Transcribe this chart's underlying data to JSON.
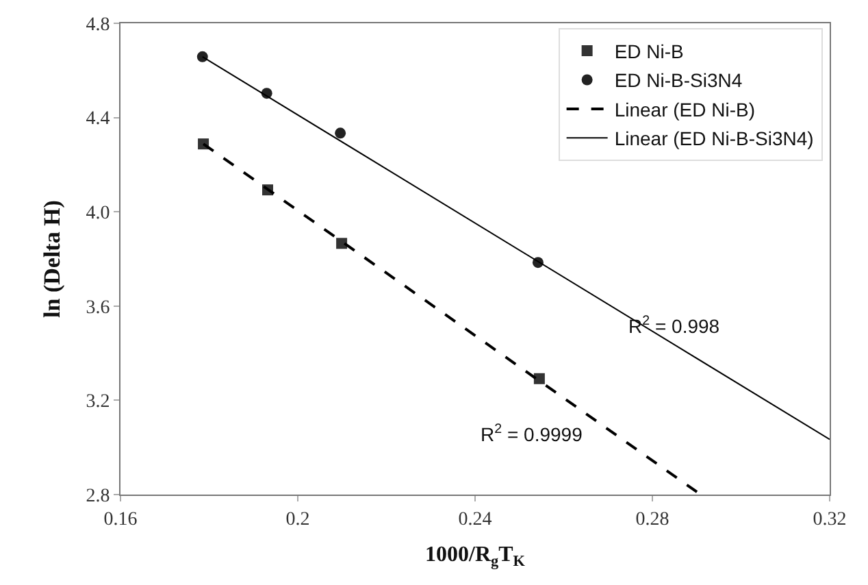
{
  "chart_data": {
    "type": "scatter",
    "xlabel": "1000/R$_{g}$T$_{K}$",
    "ylabel": "ln (Delta H)",
    "xlim": [
      0.16,
      0.32
    ],
    "xticks": [
      0.16,
      0.2,
      0.24,
      0.28,
      0.32
    ],
    "ylim": [
      2.8,
      4.8
    ],
    "yticks": [
      {
        "value": 2.8,
        "label": "2.8"
      },
      3.2,
      3.6,
      {
        "value": 4.0,
        "label": "4.0"
      },
      4.4,
      4.8
    ],
    "grid": false,
    "legend": "top right",
    "series": [
      {
        "name": "ED Ni-B",
        "marker": "square",
        "color": "#333333",
        "x": [
          0.1787,
          0.1932,
          0.2099,
          0.2545
        ],
        "values": [
          4.288,
          4.093,
          3.866,
          3.292
        ]
      },
      {
        "name": "ED Ni-B-Si3N4",
        "marker": "circle",
        "color": "#222222",
        "x": [
          0.1785,
          0.193,
          0.2096,
          0.2542
        ],
        "values": [
          4.658,
          4.503,
          4.334,
          3.785
        ]
      },
      {
        "name": "Linear (ED Ni-B)",
        "type": "line",
        "marker": "none",
        "line_style": "dashed",
        "color": "#000000",
        "x": [
          0.1787,
          0.2909
        ],
        "values": [
          4.288,
          2.8
        ]
      },
      {
        "name": "Linear (ED Ni-B-Si3N4)",
        "type": "line",
        "marker": "none",
        "line_style": "solid",
        "color": "#000000",
        "x": [
          0.1785,
          0.32
        ],
        "values": [
          4.658,
          3.034
        ]
      }
    ],
    "annotations": [
      "R$^{2}$ = 0.998",
      "R$^{2}$ = 0.9999"
    ]
  }
}
